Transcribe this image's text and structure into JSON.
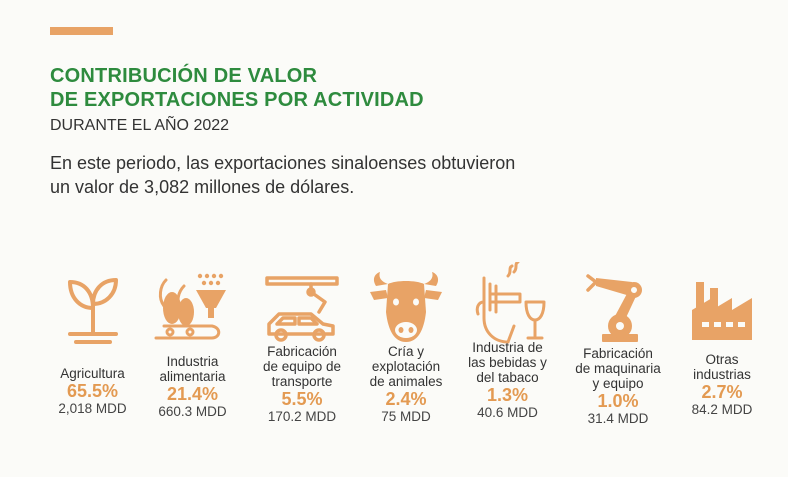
{
  "header": {
    "title_lines": [
      "CONTRIBUCIÓN DE VALOR",
      "DE EXPORTACIONES POR ACTIVIDAD"
    ],
    "subtitle": "DURANTE EL AÑO 2022",
    "intro_lines": [
      "En este periodo, las exportaciones sinaloenses obtuvieron",
      "un valor de 3,082 millones de dólares."
    ]
  },
  "colors": {
    "accent": "#e8a366",
    "title": "#2e8b3e",
    "percent": "#e39a52"
  },
  "activities": [
    {
      "icon": "plant-sprout-icon",
      "label_lines": [
        "Agricultura"
      ],
      "percent": "65.5%",
      "value": "2,018 MDD"
    },
    {
      "icon": "food-processing-icon",
      "label_lines": [
        "Industria",
        "alimentaria"
      ],
      "percent": "21.4%",
      "value": "660.3 MDD"
    },
    {
      "icon": "car-assembly-icon",
      "label_lines": [
        "Fabricación",
        "de equipo de",
        "transporte"
      ],
      "percent": "5.5%",
      "value": "170.2 MDD"
    },
    {
      "icon": "cow-head-icon",
      "label_lines": [
        "Cría y",
        "explotación",
        "de animales"
      ],
      "percent": "2.4%",
      "value": "75 MDD"
    },
    {
      "icon": "beverage-tobacco-icon",
      "label_lines": [
        "Industria de",
        "las bebidas y",
        "del tabaco"
      ],
      "percent": "1.3%",
      "value": "40.6 MDD"
    },
    {
      "icon": "robotic-arm-icon",
      "label_lines": [
        "Fabricación",
        "de maquinaria",
        "y equipo"
      ],
      "percent": "1.0%",
      "value": "31.4 MDD"
    },
    {
      "icon": "factory-icon",
      "label_lines": [
        "Otras",
        "industrias"
      ],
      "percent": "2.7%",
      "value": "84.2 MDD"
    }
  ]
}
